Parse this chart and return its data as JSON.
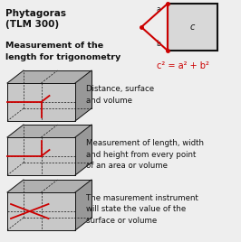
{
  "bg_color": "#eeeeee",
  "title_line1": "Phytagoras",
  "title_line2": "(TLM 300)",
  "subtitle": "Measurement of the\nlength for trigonometry",
  "formula": "c² = a² + b²",
  "desc1": "Distance, surface\nand volume",
  "desc2": "Measurement of length, width\nand height from every point\nof an area or volume",
  "desc3": "The masurement instrument\nwill state the value of the\nsurface or volume",
  "red": "#cc0000",
  "dark": "#111111",
  "gray_front": "#c0c0c0",
  "gray_top": "#a8a8a8",
  "gray_side": "#909090",
  "gray_floor": "#d8d8d8",
  "title_fs": 7.5,
  "sub_fs": 6.8,
  "desc_fs": 6.2,
  "formula_fs": 7.0
}
